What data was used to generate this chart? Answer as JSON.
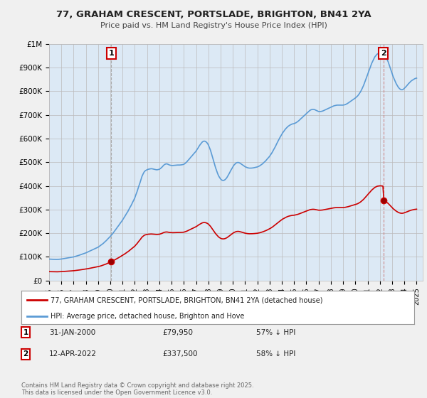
{
  "title": "77, GRAHAM CRESCENT, PORTSLADE, BRIGHTON, BN41 2YA",
  "subtitle": "Price paid vs. HM Land Registry's House Price Index (HPI)",
  "background_color": "#f0f0f0",
  "plot_bg_color": "#dce9f5",
  "hpi_color": "#5b9bd5",
  "sale_color": "#cc0000",
  "vline1_color": "#aaaaaa",
  "vline2_color": "#e08080",
  "ylim": [
    0,
    1000000
  ],
  "yticks": [
    0,
    100000,
    200000,
    300000,
    400000,
    500000,
    600000,
    700000,
    800000,
    900000,
    1000000
  ],
  "ytick_labels": [
    "£0",
    "£100K",
    "£200K",
    "£300K",
    "£400K",
    "£500K",
    "£600K",
    "£700K",
    "£800K",
    "£900K",
    "£1M"
  ],
  "sale1_date": 2000.08,
  "sale1_price": 79950,
  "sale2_date": 2022.28,
  "sale2_price": 337500,
  "legend_sale_label": "77, GRAHAM CRESCENT, PORTSLADE, BRIGHTON, BN41 2YA (detached house)",
  "legend_hpi_label": "HPI: Average price, detached house, Brighton and Hove",
  "footer_text": "Contains HM Land Registry data © Crown copyright and database right 2025.\nThis data is licensed under the Open Government Licence v3.0.",
  "hpi_data": [
    [
      1995.0,
      90745
    ],
    [
      1995.08,
      90500
    ],
    [
      1995.17,
      90000
    ],
    [
      1995.25,
      89800
    ],
    [
      1995.33,
      89500
    ],
    [
      1995.42,
      89200
    ],
    [
      1995.5,
      89000
    ],
    [
      1995.58,
      89100
    ],
    [
      1995.67,
      89300
    ],
    [
      1995.75,
      89600
    ],
    [
      1995.83,
      90000
    ],
    [
      1995.92,
      90500
    ],
    [
      1996.0,
      91000
    ],
    [
      1996.08,
      91800
    ],
    [
      1996.17,
      92500
    ],
    [
      1996.25,
      93200
    ],
    [
      1996.33,
      94000
    ],
    [
      1996.42,
      94800
    ],
    [
      1996.5,
      95500
    ],
    [
      1996.58,
      96200
    ],
    [
      1996.67,
      97000
    ],
    [
      1996.75,
      97800
    ],
    [
      1996.83,
      98500
    ],
    [
      1996.92,
      99200
    ],
    [
      1997.0,
      100000
    ],
    [
      1997.08,
      101200
    ],
    [
      1997.17,
      102500
    ],
    [
      1997.25,
      103800
    ],
    [
      1997.33,
      105200
    ],
    [
      1997.42,
      106500
    ],
    [
      1997.5,
      108000
    ],
    [
      1997.58,
      109500
    ],
    [
      1997.67,
      111000
    ],
    [
      1997.75,
      112500
    ],
    [
      1997.83,
      114000
    ],
    [
      1997.92,
      115500
    ],
    [
      1998.0,
      117000
    ],
    [
      1998.08,
      119000
    ],
    [
      1998.17,
      121000
    ],
    [
      1998.25,
      123000
    ],
    [
      1998.33,
      125000
    ],
    [
      1998.42,
      127000
    ],
    [
      1998.5,
      129000
    ],
    [
      1998.58,
      131000
    ],
    [
      1998.67,
      133000
    ],
    [
      1998.75,
      135000
    ],
    [
      1998.83,
      137000
    ],
    [
      1998.92,
      139000
    ],
    [
      1999.0,
      141000
    ],
    [
      1999.08,
      144000
    ],
    [
      1999.17,
      147000
    ],
    [
      1999.25,
      150000
    ],
    [
      1999.33,
      153500
    ],
    [
      1999.42,
      157000
    ],
    [
      1999.5,
      161000
    ],
    [
      1999.58,
      165000
    ],
    [
      1999.67,
      169000
    ],
    [
      1999.75,
      173500
    ],
    [
      1999.83,
      178000
    ],
    [
      1999.92,
      182500
    ],
    [
      2000.0,
      187000
    ],
    [
      2000.08,
      192000
    ],
    [
      2000.17,
      197000
    ],
    [
      2000.25,
      202500
    ],
    [
      2000.33,
      208000
    ],
    [
      2000.42,
      214000
    ],
    [
      2000.5,
      220000
    ],
    [
      2000.58,
      226000
    ],
    [
      2000.67,
      232000
    ],
    [
      2000.75,
      238000
    ],
    [
      2000.83,
      244000
    ],
    [
      2000.92,
      250000
    ],
    [
      2001.0,
      256000
    ],
    [
      2001.08,
      263000
    ],
    [
      2001.17,
      270000
    ],
    [
      2001.25,
      277000
    ],
    [
      2001.33,
      284000
    ],
    [
      2001.42,
      291000
    ],
    [
      2001.5,
      299000
    ],
    [
      2001.58,
      307000
    ],
    [
      2001.67,
      315000
    ],
    [
      2001.75,
      323000
    ],
    [
      2001.83,
      332000
    ],
    [
      2001.92,
      341000
    ],
    [
      2002.0,
      350000
    ],
    [
      2002.08,
      362000
    ],
    [
      2002.17,
      374000
    ],
    [
      2002.25,
      387000
    ],
    [
      2002.33,
      400000
    ],
    [
      2002.42,
      413000
    ],
    [
      2002.5,
      427000
    ],
    [
      2002.58,
      440000
    ],
    [
      2002.67,
      450000
    ],
    [
      2002.75,
      458000
    ],
    [
      2002.83,
      463000
    ],
    [
      2002.92,
      466000
    ],
    [
      2003.0,
      468000
    ],
    [
      2003.08,
      470000
    ],
    [
      2003.17,
      471000
    ],
    [
      2003.25,
      472000
    ],
    [
      2003.33,
      472500
    ],
    [
      2003.42,
      472000
    ],
    [
      2003.5,
      471000
    ],
    [
      2003.58,
      470000
    ],
    [
      2003.67,
      469000
    ],
    [
      2003.75,
      468000
    ],
    [
      2003.83,
      468000
    ],
    [
      2003.92,
      469000
    ],
    [
      2004.0,
      470000
    ],
    [
      2004.08,
      473000
    ],
    [
      2004.17,
      477000
    ],
    [
      2004.25,
      481000
    ],
    [
      2004.33,
      486000
    ],
    [
      2004.42,
      490000
    ],
    [
      2004.5,
      492000
    ],
    [
      2004.58,
      493000
    ],
    [
      2004.67,
      492000
    ],
    [
      2004.75,
      490000
    ],
    [
      2004.83,
      488000
    ],
    [
      2004.92,
      487000
    ],
    [
      2005.0,
      486000
    ],
    [
      2005.08,
      486000
    ],
    [
      2005.17,
      486500
    ],
    [
      2005.25,
      487000
    ],
    [
      2005.33,
      487500
    ],
    [
      2005.42,
      488000
    ],
    [
      2005.5,
      488000
    ],
    [
      2005.58,
      488000
    ],
    [
      2005.67,
      488000
    ],
    [
      2005.75,
      488500
    ],
    [
      2005.83,
      489000
    ],
    [
      2005.92,
      490000
    ],
    [
      2006.0,
      491000
    ],
    [
      2006.08,
      494000
    ],
    [
      2006.17,
      498000
    ],
    [
      2006.25,
      502000
    ],
    [
      2006.33,
      507000
    ],
    [
      2006.42,
      512000
    ],
    [
      2006.5,
      517000
    ],
    [
      2006.58,
      522000
    ],
    [
      2006.67,
      527000
    ],
    [
      2006.75,
      532000
    ],
    [
      2006.83,
      537000
    ],
    [
      2006.92,
      542000
    ],
    [
      2007.0,
      547000
    ],
    [
      2007.08,
      554000
    ],
    [
      2007.17,
      561000
    ],
    [
      2007.25,
      568000
    ],
    [
      2007.33,
      574000
    ],
    [
      2007.42,
      580000
    ],
    [
      2007.5,
      585000
    ],
    [
      2007.58,
      588000
    ],
    [
      2007.67,
      589000
    ],
    [
      2007.75,
      588000
    ],
    [
      2007.83,
      585000
    ],
    [
      2007.92,
      580000
    ],
    [
      2008.0,
      573000
    ],
    [
      2008.08,
      563000
    ],
    [
      2008.17,
      551000
    ],
    [
      2008.25,
      537000
    ],
    [
      2008.33,
      522000
    ],
    [
      2008.42,
      507000
    ],
    [
      2008.5,
      492000
    ],
    [
      2008.58,
      478000
    ],
    [
      2008.67,
      465000
    ],
    [
      2008.75,
      453000
    ],
    [
      2008.83,
      443000
    ],
    [
      2008.92,
      435000
    ],
    [
      2009.0,
      429000
    ],
    [
      2009.08,
      425000
    ],
    [
      2009.17,
      423000
    ],
    [
      2009.25,
      423000
    ],
    [
      2009.33,
      425000
    ],
    [
      2009.42,
      429000
    ],
    [
      2009.5,
      434000
    ],
    [
      2009.58,
      441000
    ],
    [
      2009.67,
      449000
    ],
    [
      2009.75,
      457000
    ],
    [
      2009.83,
      465000
    ],
    [
      2009.92,
      473000
    ],
    [
      2010.0,
      480000
    ],
    [
      2010.08,
      487000
    ],
    [
      2010.17,
      492000
    ],
    [
      2010.25,
      496000
    ],
    [
      2010.33,
      498000
    ],
    [
      2010.42,
      499000
    ],
    [
      2010.5,
      498000
    ],
    [
      2010.58,
      496000
    ],
    [
      2010.67,
      493000
    ],
    [
      2010.75,
      490000
    ],
    [
      2010.83,
      487000
    ],
    [
      2010.92,
      484000
    ],
    [
      2011.0,
      481000
    ],
    [
      2011.08,
      479000
    ],
    [
      2011.17,
      477000
    ],
    [
      2011.25,
      476000
    ],
    [
      2011.33,
      475000
    ],
    [
      2011.42,
      475000
    ],
    [
      2011.5,
      475000
    ],
    [
      2011.58,
      475500
    ],
    [
      2011.67,
      476000
    ],
    [
      2011.75,
      477000
    ],
    [
      2011.83,
      478000
    ],
    [
      2011.92,
      479000
    ],
    [
      2012.0,
      480000
    ],
    [
      2012.08,
      482000
    ],
    [
      2012.17,
      484000
    ],
    [
      2012.25,
      487000
    ],
    [
      2012.33,
      490000
    ],
    [
      2012.42,
      493000
    ],
    [
      2012.5,
      497000
    ],
    [
      2012.58,
      501000
    ],
    [
      2012.67,
      505000
    ],
    [
      2012.75,
      510000
    ],
    [
      2012.83,
      515000
    ],
    [
      2012.92,
      520000
    ],
    [
      2013.0,
      525000
    ],
    [
      2013.08,
      531000
    ],
    [
      2013.17,
      538000
    ],
    [
      2013.25,
      545000
    ],
    [
      2013.33,
      553000
    ],
    [
      2013.42,
      561000
    ],
    [
      2013.5,
      569000
    ],
    [
      2013.58,
      578000
    ],
    [
      2013.67,
      587000
    ],
    [
      2013.75,
      595000
    ],
    [
      2013.83,
      603000
    ],
    [
      2013.92,
      611000
    ],
    [
      2014.0,
      618000
    ],
    [
      2014.08,
      625000
    ],
    [
      2014.17,
      631000
    ],
    [
      2014.25,
      637000
    ],
    [
      2014.33,
      642000
    ],
    [
      2014.42,
      647000
    ],
    [
      2014.5,
      651000
    ],
    [
      2014.58,
      654000
    ],
    [
      2014.67,
      657000
    ],
    [
      2014.75,
      659000
    ],
    [
      2014.83,
      661000
    ],
    [
      2014.92,
      662000
    ],
    [
      2015.0,
      663000
    ],
    [
      2015.08,
      665000
    ],
    [
      2015.17,
      667000
    ],
    [
      2015.25,
      670000
    ],
    [
      2015.33,
      673000
    ],
    [
      2015.42,
      677000
    ],
    [
      2015.5,
      681000
    ],
    [
      2015.58,
      685000
    ],
    [
      2015.67,
      689000
    ],
    [
      2015.75,
      693000
    ],
    [
      2015.83,
      697000
    ],
    [
      2015.92,
      701000
    ],
    [
      2016.0,
      705000
    ],
    [
      2016.08,
      709000
    ],
    [
      2016.17,
      713000
    ],
    [
      2016.25,
      717000
    ],
    [
      2016.33,
      720000
    ],
    [
      2016.42,
      722000
    ],
    [
      2016.5,
      723000
    ],
    [
      2016.58,
      723000
    ],
    [
      2016.67,
      722000
    ],
    [
      2016.75,
      720000
    ],
    [
      2016.83,
      718000
    ],
    [
      2016.92,
      716000
    ],
    [
      2017.0,
      714000
    ],
    [
      2017.08,
      714000
    ],
    [
      2017.17,
      714000
    ],
    [
      2017.25,
      715000
    ],
    [
      2017.33,
      716000
    ],
    [
      2017.42,
      718000
    ],
    [
      2017.5,
      720000
    ],
    [
      2017.58,
      722000
    ],
    [
      2017.67,
      724000
    ],
    [
      2017.75,
      726000
    ],
    [
      2017.83,
      728000
    ],
    [
      2017.92,
      730000
    ],
    [
      2018.0,
      732000
    ],
    [
      2018.08,
      734000
    ],
    [
      2018.17,
      736000
    ],
    [
      2018.25,
      738000
    ],
    [
      2018.33,
      739000
    ],
    [
      2018.42,
      740000
    ],
    [
      2018.5,
      741000
    ],
    [
      2018.58,
      741000
    ],
    [
      2018.67,
      741000
    ],
    [
      2018.75,
      741000
    ],
    [
      2018.83,
      741000
    ],
    [
      2018.92,
      741000
    ],
    [
      2019.0,
      741000
    ],
    [
      2019.08,
      742000
    ],
    [
      2019.17,
      743000
    ],
    [
      2019.25,
      745000
    ],
    [
      2019.33,
      747000
    ],
    [
      2019.42,
      750000
    ],
    [
      2019.5,
      753000
    ],
    [
      2019.58,
      756000
    ],
    [
      2019.67,
      759000
    ],
    [
      2019.75,
      762000
    ],
    [
      2019.83,
      765000
    ],
    [
      2019.92,
      768000
    ],
    [
      2020.0,
      771000
    ],
    [
      2020.08,
      775000
    ],
    [
      2020.17,
      779000
    ],
    [
      2020.25,
      784000
    ],
    [
      2020.33,
      790000
    ],
    [
      2020.42,
      797000
    ],
    [
      2020.5,
      805000
    ],
    [
      2020.58,
      814000
    ],
    [
      2020.67,
      824000
    ],
    [
      2020.75,
      835000
    ],
    [
      2020.83,
      846000
    ],
    [
      2020.92,
      858000
    ],
    [
      2021.0,
      870000
    ],
    [
      2021.08,
      882000
    ],
    [
      2021.17,
      894000
    ],
    [
      2021.25,
      906000
    ],
    [
      2021.33,
      917000
    ],
    [
      2021.42,
      927000
    ],
    [
      2021.5,
      936000
    ],
    [
      2021.58,
      944000
    ],
    [
      2021.67,
      950000
    ],
    [
      2021.75,
      955000
    ],
    [
      2021.83,
      958000
    ],
    [
      2021.92,
      960000
    ],
    [
      2022.0,
      961000
    ],
    [
      2022.08,
      961000
    ],
    [
      2022.17,
      960000
    ],
    [
      2022.25,
      958000
    ],
    [
      2022.33,
      955000
    ],
    [
      2022.42,
      950000
    ],
    [
      2022.5,
      943000
    ],
    [
      2022.58,
      935000
    ],
    [
      2022.67,
      925000
    ],
    [
      2022.75,
      913000
    ],
    [
      2022.83,
      900000
    ],
    [
      2022.92,
      887000
    ],
    [
      2023.0,
      874000
    ],
    [
      2023.08,
      862000
    ],
    [
      2023.17,
      851000
    ],
    [
      2023.25,
      841000
    ],
    [
      2023.33,
      832000
    ],
    [
      2023.42,
      824000
    ],
    [
      2023.5,
      817000
    ],
    [
      2023.58,
      812000
    ],
    [
      2023.67,
      808000
    ],
    [
      2023.75,
      806000
    ],
    [
      2023.83,
      806000
    ],
    [
      2023.92,
      808000
    ],
    [
      2024.0,
      812000
    ],
    [
      2024.08,
      816000
    ],
    [
      2024.17,
      821000
    ],
    [
      2024.25,
      826000
    ],
    [
      2024.33,
      831000
    ],
    [
      2024.42,
      836000
    ],
    [
      2024.5,
      840000
    ],
    [
      2024.58,
      844000
    ],
    [
      2024.67,
      847000
    ],
    [
      2024.75,
      850000
    ],
    [
      2024.83,
      852000
    ],
    [
      2024.92,
      854000
    ],
    [
      2025.0,
      855000
    ]
  ],
  "xmin": 1995.0,
  "xmax": 2025.5,
  "xticks": [
    1995,
    1996,
    1997,
    1998,
    1999,
    2000,
    2001,
    2002,
    2003,
    2004,
    2005,
    2006,
    2007,
    2008,
    2009,
    2010,
    2011,
    2012,
    2013,
    2014,
    2015,
    2016,
    2017,
    2018,
    2019,
    2020,
    2021,
    2022,
    2023,
    2024,
    2025
  ]
}
